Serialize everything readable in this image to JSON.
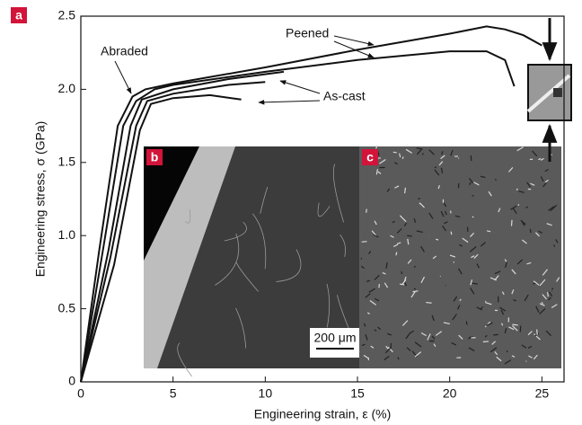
{
  "chart_data": {
    "type": "line",
    "xlabel": "Engineering strain, ε (%)",
    "ylabel": "Engineering stress, σ (GPa)",
    "xlim": [
      0,
      26.2
    ],
    "ylim": [
      0,
      2.5
    ],
    "xticks": [
      0,
      5,
      10,
      15,
      20,
      25
    ],
    "yticks": [
      0,
      0.5,
      {
        "value": 1,
        "label": "1.0"
      },
      1.5,
      {
        "value": 2,
        "label": "2.0"
      },
      2.5
    ],
    "series": [
      {
        "color": "#111111",
        "x": [
          0,
          1,
          2,
          2.8,
          3.5,
          5,
          10,
          15,
          20,
          22,
          23,
          24,
          25
        ],
        "values": [
          0,
          0.9,
          1.75,
          1.95,
          2.0,
          2.04,
          2.15,
          2.27,
          2.38,
          2.43,
          2.41,
          2.37,
          2.3
        ]
      },
      {
        "color": "#111111",
        "x": [
          0,
          1.2,
          2.3,
          3,
          4,
          5,
          10,
          15,
          20,
          22,
          23,
          23.5
        ],
        "values": [
          0,
          0.9,
          1.75,
          1.92,
          2.0,
          2.03,
          2.12,
          2.2,
          2.26,
          2.26,
          2.2,
          2.02
        ]
      },
      {
        "color": "#111111",
        "x": [
          0,
          1.5,
          2.7,
          3.3,
          5,
          8,
          11
        ],
        "values": [
          0,
          0.9,
          1.75,
          1.93,
          2.0,
          2.07,
          2.12
        ]
      },
      {
        "color": "#111111",
        "x": [
          0,
          1.6,
          3,
          3.6,
          5,
          8,
          10
        ],
        "values": [
          0,
          0.85,
          1.75,
          1.92,
          1.97,
          2.03,
          2.05
        ]
      },
      {
        "color": "#111111",
        "x": [
          0,
          1.8,
          3.2,
          3.8,
          5,
          7,
          8.7
        ],
        "values": [
          0,
          0.8,
          1.72,
          1.9,
          1.94,
          1.96,
          1.93
        ]
      }
    ],
    "annotations": [
      "Peened",
      "Abraded",
      "As-cast",
      "200 μm"
    ],
    "panels": [
      "a",
      "b",
      "c"
    ]
  }
}
